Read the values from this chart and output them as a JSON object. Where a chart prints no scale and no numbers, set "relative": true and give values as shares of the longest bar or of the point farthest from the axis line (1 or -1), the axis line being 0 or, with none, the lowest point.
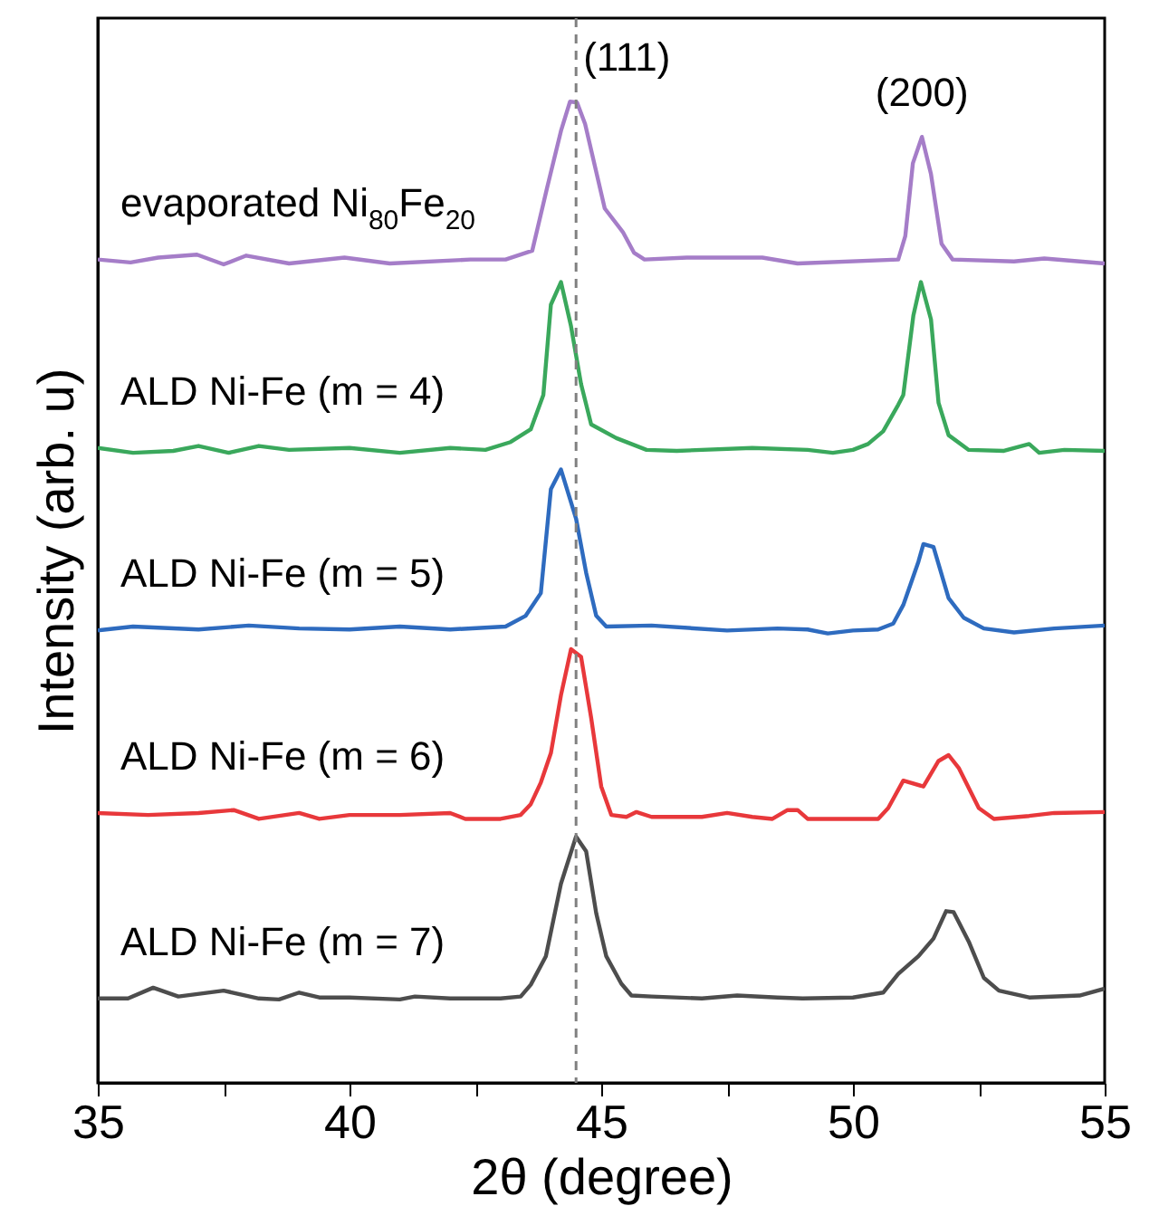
{
  "chart_data": {
    "type": "line",
    "relative": true,
    "xlabel": "2θ (degree)",
    "ylabel": "Intensity (arb. u)",
    "xlim": [
      35,
      55
    ],
    "xticks": [
      35,
      {
        "value": 37.5,
        "label": null
      },
      40,
      {
        "value": 42.5,
        "label": null
      },
      45,
      {
        "value": 47.5,
        "label": null
      },
      50,
      {
        "value": 52.5,
        "label": null
      },
      55
    ],
    "grid": false,
    "marker": "none",
    "line_style": "solid",
    "ref_lines": [
      {
        "axis": "x",
        "value": 44.5,
        "color": "#808080",
        "line_style": "dashed"
      }
    ],
    "annotations": [
      "(111)",
      "(200)"
    ],
    "series": [
      {
        "name": "evaporated Ni$_{80}$Fe$_{20}$",
        "color": "#a57dc8",
        "x": [
          35,
          35.65,
          36.2,
          36.97,
          37.5,
          37.95,
          38.8,
          39.9,
          40.8,
          42.4,
          43.1,
          43.63,
          43.92,
          44.2,
          44.38,
          44.52,
          44.68,
          45.07,
          45.43,
          45.65,
          45.86,
          46.7,
          48.2,
          48.9,
          50.9,
          51.04,
          51.19,
          51.37,
          51.55,
          51.76,
          51.98,
          53.2,
          53.8,
          55
        ],
        "values": [
          0.839,
          0.836,
          0.841,
          0.844,
          0.834,
          0.843,
          0.835,
          0.841,
          0.835,
          0.839,
          0.839,
          0.848,
          0.911,
          0.97,
          1.0,
          0.999,
          0.977,
          0.891,
          0.867,
          0.846,
          0.839,
          0.841,
          0.841,
          0.835,
          0.839,
          0.863,
          0.937,
          0.964,
          0.926,
          0.855,
          0.839,
          0.837,
          0.84,
          0.835
        ]
      },
      {
        "name": "ALD Ni-Fe (m = 4)",
        "color": "#3aa85c",
        "x": [
          35,
          35.7,
          36.5,
          37.0,
          37.6,
          38.2,
          38.8,
          40,
          41,
          42,
          42.7,
          43.2,
          43.6,
          43.85,
          44.0,
          44.2,
          44.4,
          44.6,
          44.8,
          45.3,
          45.9,
          46.5,
          48,
          49.1,
          49.6,
          50.0,
          50.3,
          50.6,
          50.9,
          51.0,
          51.2,
          51.35,
          51.55,
          51.7,
          51.9,
          52.3,
          53,
          53.5,
          53.7,
          54.2,
          55
        ],
        "values": [
          0.647,
          0.642,
          0.644,
          0.649,
          0.642,
          0.649,
          0.645,
          0.647,
          0.642,
          0.647,
          0.645,
          0.653,
          0.666,
          0.701,
          0.793,
          0.816,
          0.771,
          0.712,
          0.671,
          0.657,
          0.645,
          0.644,
          0.647,
          0.645,
          0.642,
          0.645,
          0.651,
          0.664,
          0.691,
          0.701,
          0.782,
          0.816,
          0.778,
          0.693,
          0.66,
          0.645,
          0.644,
          0.651,
          0.642,
          0.645,
          0.644
        ]
      },
      {
        "name": "ALD Ni-Fe (m = 5)",
        "color": "#2e6bbf",
        "x": [
          35,
          35.7,
          37,
          38,
          39,
          40,
          41,
          42,
          43.1,
          43.5,
          43.8,
          44.0,
          44.2,
          44.5,
          44.7,
          44.9,
          45.1,
          46,
          47.5,
          48.5,
          49.1,
          49.5,
          50,
          50.5,
          50.8,
          51.0,
          51.3,
          51.4,
          51.6,
          51.9,
          52.2,
          52.6,
          53.2,
          54,
          55
        ],
        "values": [
          0.461,
          0.465,
          0.462,
          0.466,
          0.463,
          0.462,
          0.465,
          0.462,
          0.465,
          0.476,
          0.499,
          0.605,
          0.625,
          0.575,
          0.52,
          0.476,
          0.465,
          0.466,
          0.461,
          0.463,
          0.462,
          0.458,
          0.461,
          0.462,
          0.468,
          0.487,
          0.531,
          0.549,
          0.546,
          0.494,
          0.474,
          0.463,
          0.459,
          0.463,
          0.466
        ]
      },
      {
        "name": "ALD Ni-Fe (m = 6)",
        "color": "#e8383b",
        "x": [
          35,
          36,
          37,
          37.7,
          38.2,
          39,
          39.4,
          40,
          41,
          42,
          42.3,
          43,
          43.4,
          43.6,
          43.8,
          44.0,
          44.2,
          44.4,
          44.6,
          44.8,
          45.0,
          45.2,
          45.5,
          45.7,
          46,
          47,
          47.5,
          48.0,
          48.4,
          48.7,
          48.9,
          49.1,
          50,
          50.5,
          50.7,
          51.0,
          51.4,
          51.7,
          51.9,
          52.1,
          52.5,
          52.8,
          53.5,
          54,
          55
        ],
        "values": [
          0.275,
          0.273,
          0.275,
          0.278,
          0.269,
          0.275,
          0.269,
          0.273,
          0.273,
          0.275,
          0.269,
          0.269,
          0.273,
          0.284,
          0.306,
          0.336,
          0.395,
          0.442,
          0.434,
          0.372,
          0.302,
          0.273,
          0.271,
          0.276,
          0.271,
          0.271,
          0.275,
          0.271,
          0.269,
          0.278,
          0.278,
          0.269,
          0.269,
          0.269,
          0.28,
          0.308,
          0.302,
          0.328,
          0.334,
          0.321,
          0.28,
          0.269,
          0.272,
          0.275,
          0.276
        ]
      },
      {
        "name": "ALD Ni-Fe (m = 7)",
        "color": "#4d4d4d",
        "x": [
          35,
          35.6,
          36.1,
          36.6,
          37.5,
          38.2,
          38.6,
          39.0,
          39.4,
          40,
          41,
          41.3,
          42,
          43,
          43.4,
          43.6,
          43.9,
          44.2,
          44.5,
          44.7,
          44.9,
          45.1,
          45.4,
          45.6,
          46,
          47,
          47.7,
          48.5,
          49,
          50,
          50.6,
          50.9,
          51.3,
          51.6,
          51.85,
          52.0,
          52.3,
          52.6,
          52.9,
          53.5,
          54.5,
          55
        ],
        "values": [
          0.086,
          0.086,
          0.097,
          0.088,
          0.094,
          0.086,
          0.085,
          0.092,
          0.087,
          0.087,
          0.085,
          0.088,
          0.086,
          0.086,
          0.088,
          0.1,
          0.129,
          0.203,
          0.251,
          0.236,
          0.173,
          0.129,
          0.101,
          0.089,
          0.088,
          0.086,
          0.089,
          0.087,
          0.086,
          0.087,
          0.092,
          0.111,
          0.129,
          0.147,
          0.175,
          0.174,
          0.144,
          0.107,
          0.094,
          0.087,
          0.089,
          0.096
        ]
      }
    ]
  }
}
